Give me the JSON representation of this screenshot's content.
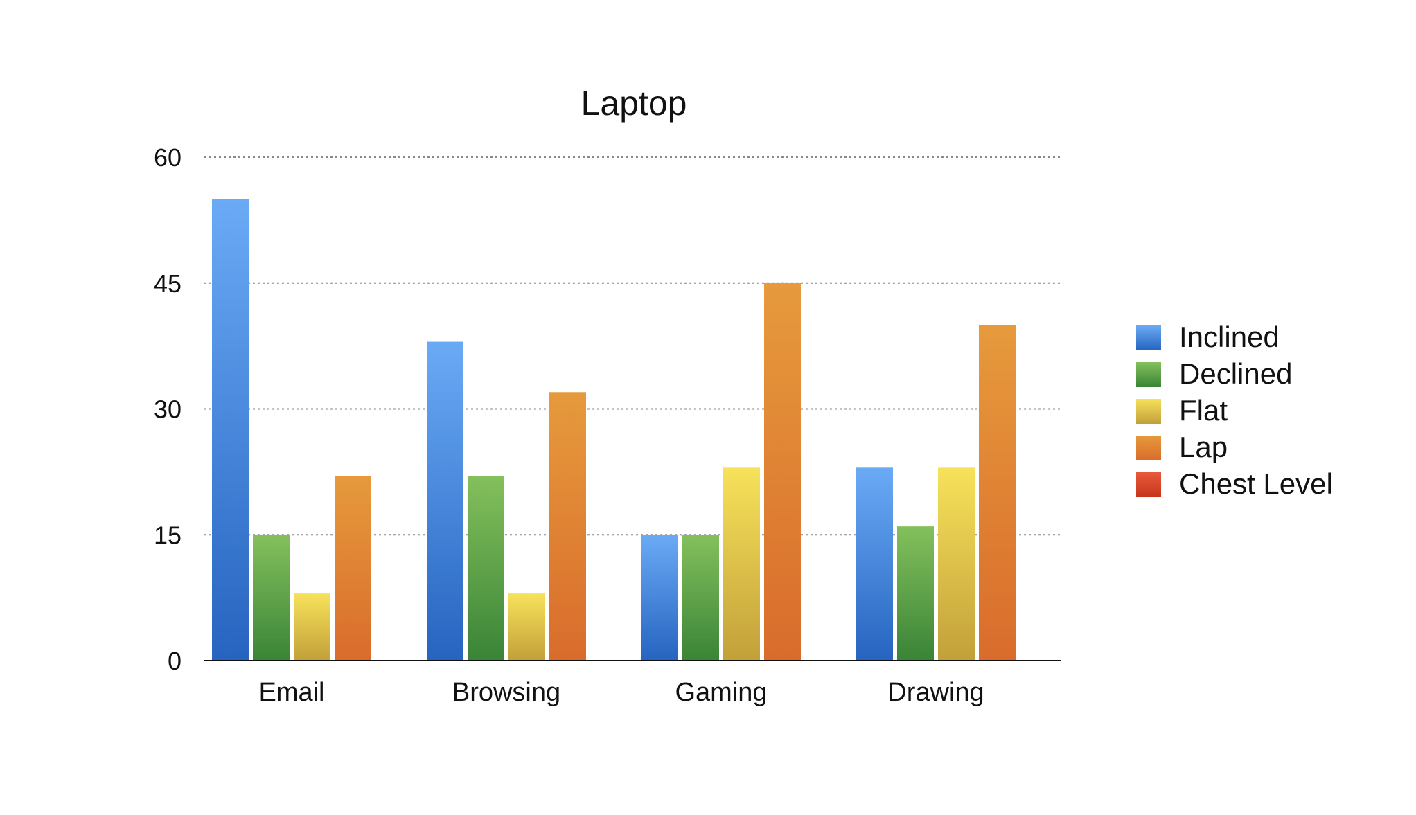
{
  "chart_data": {
    "type": "bar",
    "title": "Laptop",
    "categories": [
      "Email",
      "Browsing",
      "Gaming",
      "Drawing"
    ],
    "series": [
      {
        "name": "Inclined",
        "values": [
          55,
          38,
          15,
          23
        ],
        "color_top": "#6aaaf5",
        "color_bottom": "#2664c0"
      },
      {
        "name": "Declined",
        "values": [
          15,
          22,
          15,
          16
        ],
        "color_top": "#84c05c",
        "color_bottom": "#3a8437"
      },
      {
        "name": "Flat",
        "values": [
          8,
          8,
          23,
          23
        ],
        "color_top": "#f7e25a",
        "color_bottom": "#c2a03a"
      },
      {
        "name": "Lap",
        "values": [
          22,
          32,
          45,
          40
        ],
        "color_top": "#e69a3c",
        "color_bottom": "#d96c2c"
      },
      {
        "name": "Chest Level",
        "values": [
          0,
          0,
          0,
          0
        ],
        "color_top": "#e85a3a",
        "color_bottom": "#c7351c"
      }
    ],
    "yticks": [
      0,
      15,
      30,
      45,
      60
    ],
    "ylim": [
      0,
      60
    ],
    "xlabel": "",
    "ylabel": "",
    "grid": true,
    "legend_position": "right"
  }
}
